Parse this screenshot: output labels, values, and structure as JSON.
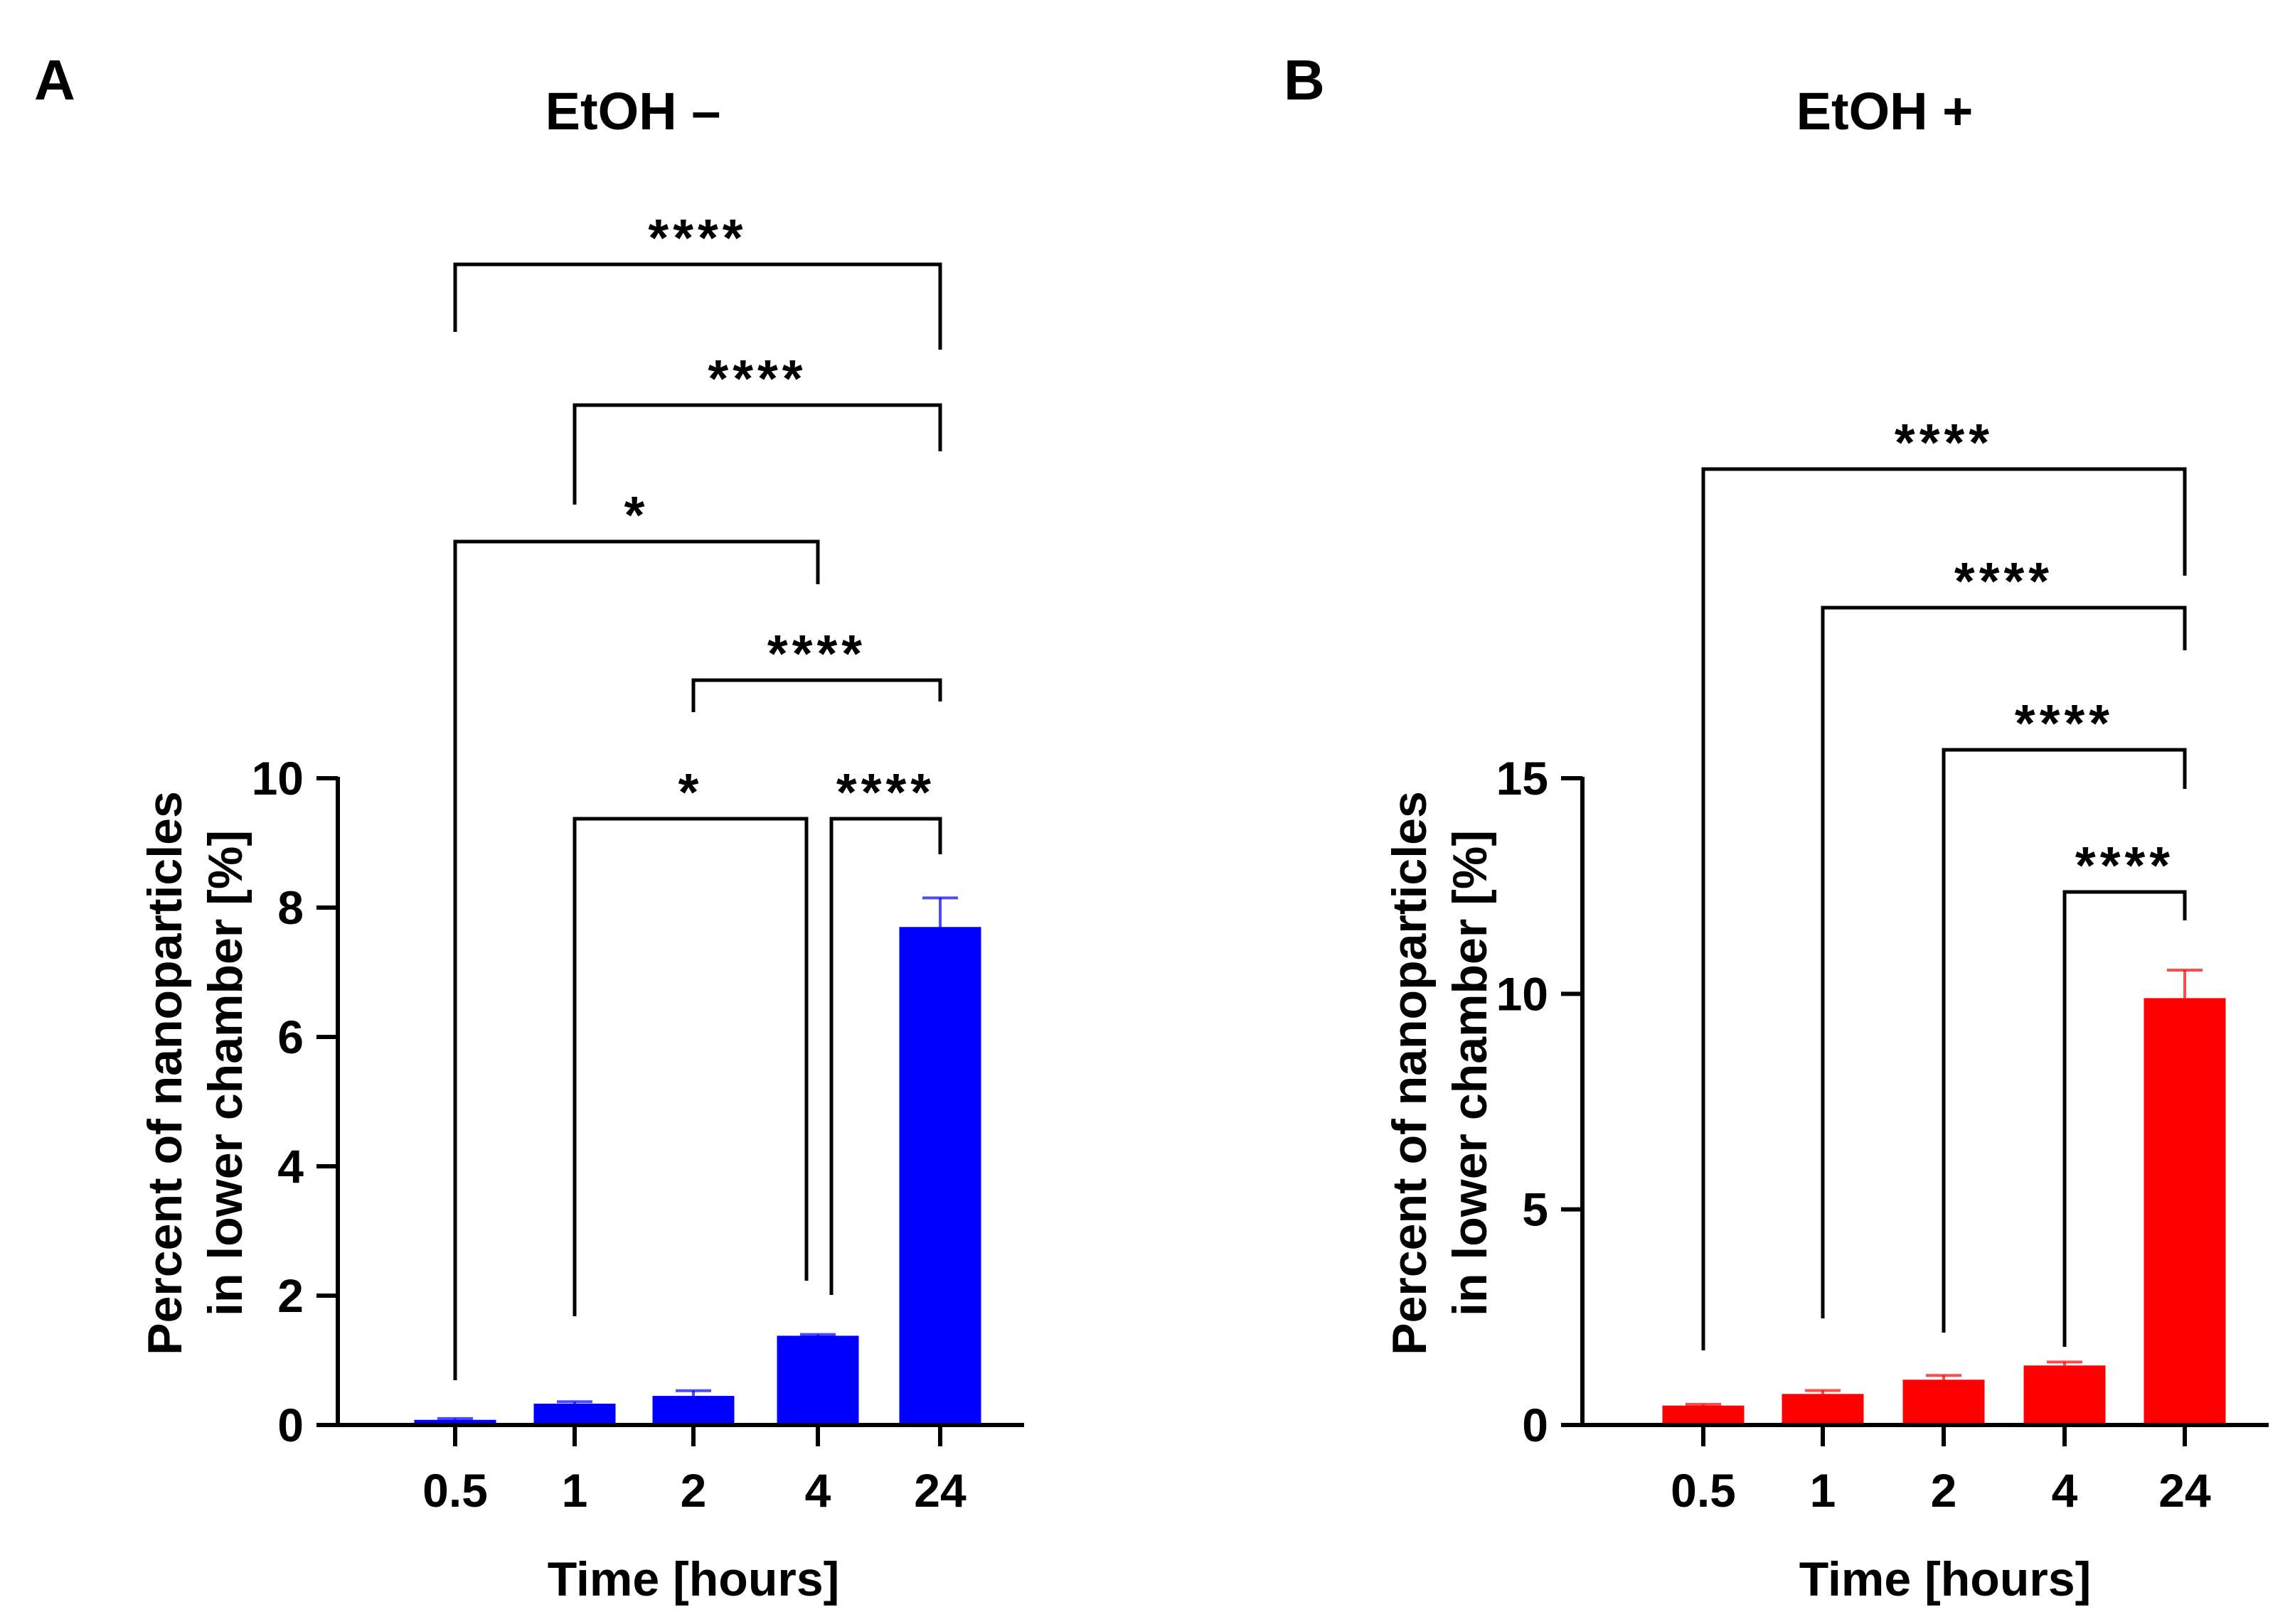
{
  "figure": {
    "panels": [
      "A",
      "B"
    ]
  },
  "chart_data": [
    {
      "type": "bar",
      "panel_label": "A",
      "title": "EtOH –",
      "xlabel": "Time [hours]",
      "ylabel_line1": "Percent of nanoparticles",
      "ylabel_line2": "in lower chamber [%]",
      "categories": [
        "0.5",
        "1",
        "2",
        "4",
        "24"
      ],
      "values": [
        0.08,
        0.33,
        0.45,
        1.38,
        7.7
      ],
      "errors": [
        0.02,
        0.03,
        0.08,
        0.02,
        0.45
      ],
      "ylim": [
        0,
        10
      ],
      "yticks": [
        0,
        2,
        4,
        6,
        8,
        10
      ],
      "ytick_labels": [
        "0",
        "2",
        "4",
        "6",
        "8",
        "10"
      ],
      "color": "#0000ff",
      "comparisons": [
        {
          "from": "0.5",
          "to": "24",
          "label": "****"
        },
        {
          "from": "1",
          "to": "24",
          "label": "****"
        },
        {
          "from": "0.5",
          "to": "4",
          "label": "*"
        },
        {
          "from": "2",
          "to": "24",
          "label": "****"
        },
        {
          "from": "1",
          "to": "4",
          "label": "*"
        },
        {
          "from": "4",
          "to": "24",
          "label": "****"
        }
      ]
    },
    {
      "type": "bar",
      "panel_label": "B",
      "title": "EtOH +",
      "xlabel": "Time [hours]",
      "ylabel_line1": "Percent of nanoparticles",
      "ylabel_line2": "in lower chamber [%]",
      "categories": [
        "0.5",
        "1",
        "2",
        "4",
        "24"
      ],
      "values": [
        0.45,
        0.72,
        1.05,
        1.38,
        9.9
      ],
      "errors": [
        0.03,
        0.08,
        0.1,
        0.08,
        0.65
      ],
      "ylim": [
        0,
        15
      ],
      "yticks": [
        0,
        5,
        10,
        15
      ],
      "ytick_labels": [
        "0",
        "5",
        "10",
        "15"
      ],
      "color": "#ff0000",
      "comparisons": [
        {
          "from": "0.5",
          "to": "24",
          "label": "****"
        },
        {
          "from": "1",
          "to": "24",
          "label": "****"
        },
        {
          "from": "2",
          "to": "24",
          "label": "****"
        },
        {
          "from": "4",
          "to": "24",
          "label": "****"
        }
      ]
    }
  ]
}
